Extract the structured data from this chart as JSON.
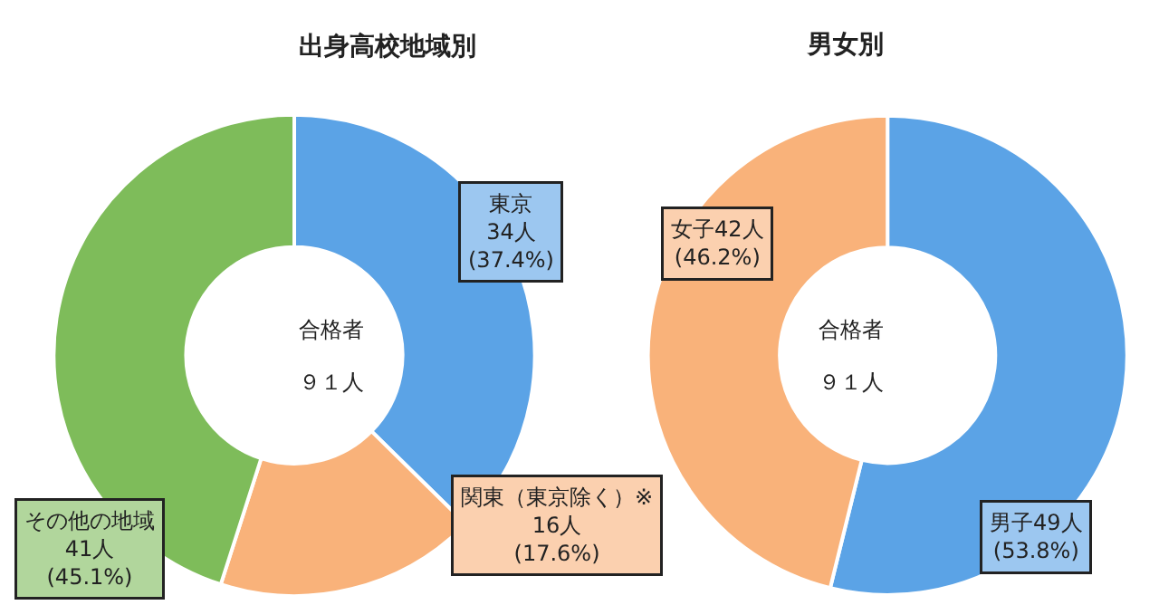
{
  "chart_data": [
    {
      "type": "donut",
      "title": "出身高校地域別",
      "categories": [
        null,
        null,
        null
      ],
      "values": [
        34,
        16,
        41
      ],
      "colors": [
        "#5ba3e6",
        "#f9b27a",
        "#7ebc5a"
      ],
      "value_labels": [
        "東京\n34人\n(37.4%)",
        "関東（東京除く）※\n16人\n(17.6%)",
        "その他の地域\n41人\n(45.1%)"
      ],
      "annotations": [
        "合格者",
        "９１人"
      ]
    },
    {
      "type": "donut",
      "title": "男女別",
      "categories": [
        null,
        null
      ],
      "values": [
        49,
        42
      ],
      "colors": [
        "#5ba3e6",
        "#f9b27a"
      ],
      "value_labels": [
        "男子49人\n(53.8%)",
        "女子42人\n(46.2%)"
      ],
      "annotations": [
        "合格者",
        "９１人"
      ]
    }
  ]
}
